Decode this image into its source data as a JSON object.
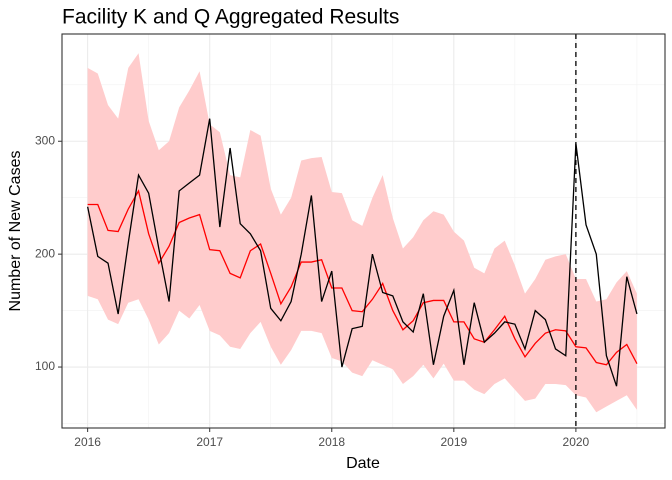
{
  "chart_data": {
    "type": "line",
    "title": "Facility K and Q Aggregated Results",
    "xlabel": "Date",
    "ylabel": "Number of New Cases",
    "x": [
      2016,
      2016.083,
      2016.167,
      2016.25,
      2016.333,
      2016.417,
      2016.5,
      2016.583,
      2016.667,
      2016.75,
      2016.833,
      2016.917,
      2017,
      2017.083,
      2017.167,
      2017.25,
      2017.333,
      2017.417,
      2017.5,
      2017.583,
      2017.667,
      2017.75,
      2017.833,
      2017.917,
      2018,
      2018.083,
      2018.167,
      2018.25,
      2018.333,
      2018.417,
      2018.5,
      2018.583,
      2018.667,
      2018.75,
      2018.833,
      2018.917,
      2019,
      2019.083,
      2019.167,
      2019.25,
      2019.333,
      2019.417,
      2019.5,
      2019.583,
      2019.667,
      2019.75,
      2019.833,
      2019.917,
      2020,
      2020.083,
      2020.167,
      2020.25,
      2020.333,
      2020.417,
      2020.5
    ],
    "band": {
      "color": "#ffcccc",
      "upper": [
        365,
        360,
        332,
        320,
        365,
        378,
        318,
        292,
        300,
        330,
        345,
        362,
        315,
        308,
        270,
        268,
        310,
        305,
        258,
        235,
        250,
        283,
        285,
        286,
        255,
        254,
        230,
        225,
        250,
        270,
        232,
        205,
        215,
        230,
        238,
        235,
        220,
        212,
        188,
        183,
        205,
        212,
        190,
        165,
        178,
        195,
        198,
        200,
        178,
        178,
        158,
        160,
        175,
        185,
        165
      ],
      "lower": [
        163,
        160,
        142,
        138,
        157,
        160,
        142,
        120,
        130,
        150,
        143,
        155,
        132,
        128,
        118,
        116,
        130,
        140,
        118,
        102,
        115,
        132,
        132,
        130,
        108,
        105,
        95,
        92,
        106,
        102,
        98,
        85,
        92,
        102,
        90,
        103,
        88,
        88,
        80,
        76,
        85,
        90,
        80,
        70,
        72,
        85,
        85,
        84,
        75,
        73,
        60,
        65,
        70,
        75,
        62
      ]
    },
    "series": [
      {
        "color": "#ff0000",
        "values": [
          244,
          244,
          221,
          220,
          240,
          256,
          218,
          192,
          207,
          228,
          232,
          235,
          204,
          203,
          183,
          179,
          203,
          209,
          183,
          156,
          171,
          193,
          193,
          195,
          170,
          170,
          150,
          149,
          160,
          174,
          150,
          133,
          141,
          157,
          159,
          159,
          140,
          140,
          125,
          122,
          133,
          145,
          125,
          109,
          121,
          130,
          133,
          132,
          118,
          117,
          104,
          102,
          113,
          120,
          103
        ]
      },
      {
        "color": "#000000",
        "values": [
          242,
          198,
          192,
          147,
          210,
          270,
          254,
          205,
          158,
          256,
          263,
          270,
          320,
          224,
          294,
          227,
          218,
          203,
          152,
          141,
          158,
          200,
          252,
          158,
          185,
          100,
          134,
          136,
          200,
          166,
          163,
          140,
          131,
          165,
          102,
          145,
          168,
          102,
          157,
          122,
          130,
          140,
          138,
          116,
          150,
          142,
          116,
          110,
          298,
          226,
          200,
          110,
          83,
          180,
          147
        ]
      }
    ],
    "vline": 2020,
    "xlim": [
      2015.79,
      2020.73
    ],
    "ylim": [
      46,
      395
    ],
    "xticks": [
      2016,
      2017,
      2018,
      2019,
      2020
    ],
    "yticks": [
      100,
      200,
      300
    ],
    "xminor": [
      2016.5,
      2017.5,
      2018.5,
      2019.5,
      2020.5
    ],
    "yminor": [
      50,
      150,
      250,
      350
    ],
    "grid": true
  }
}
